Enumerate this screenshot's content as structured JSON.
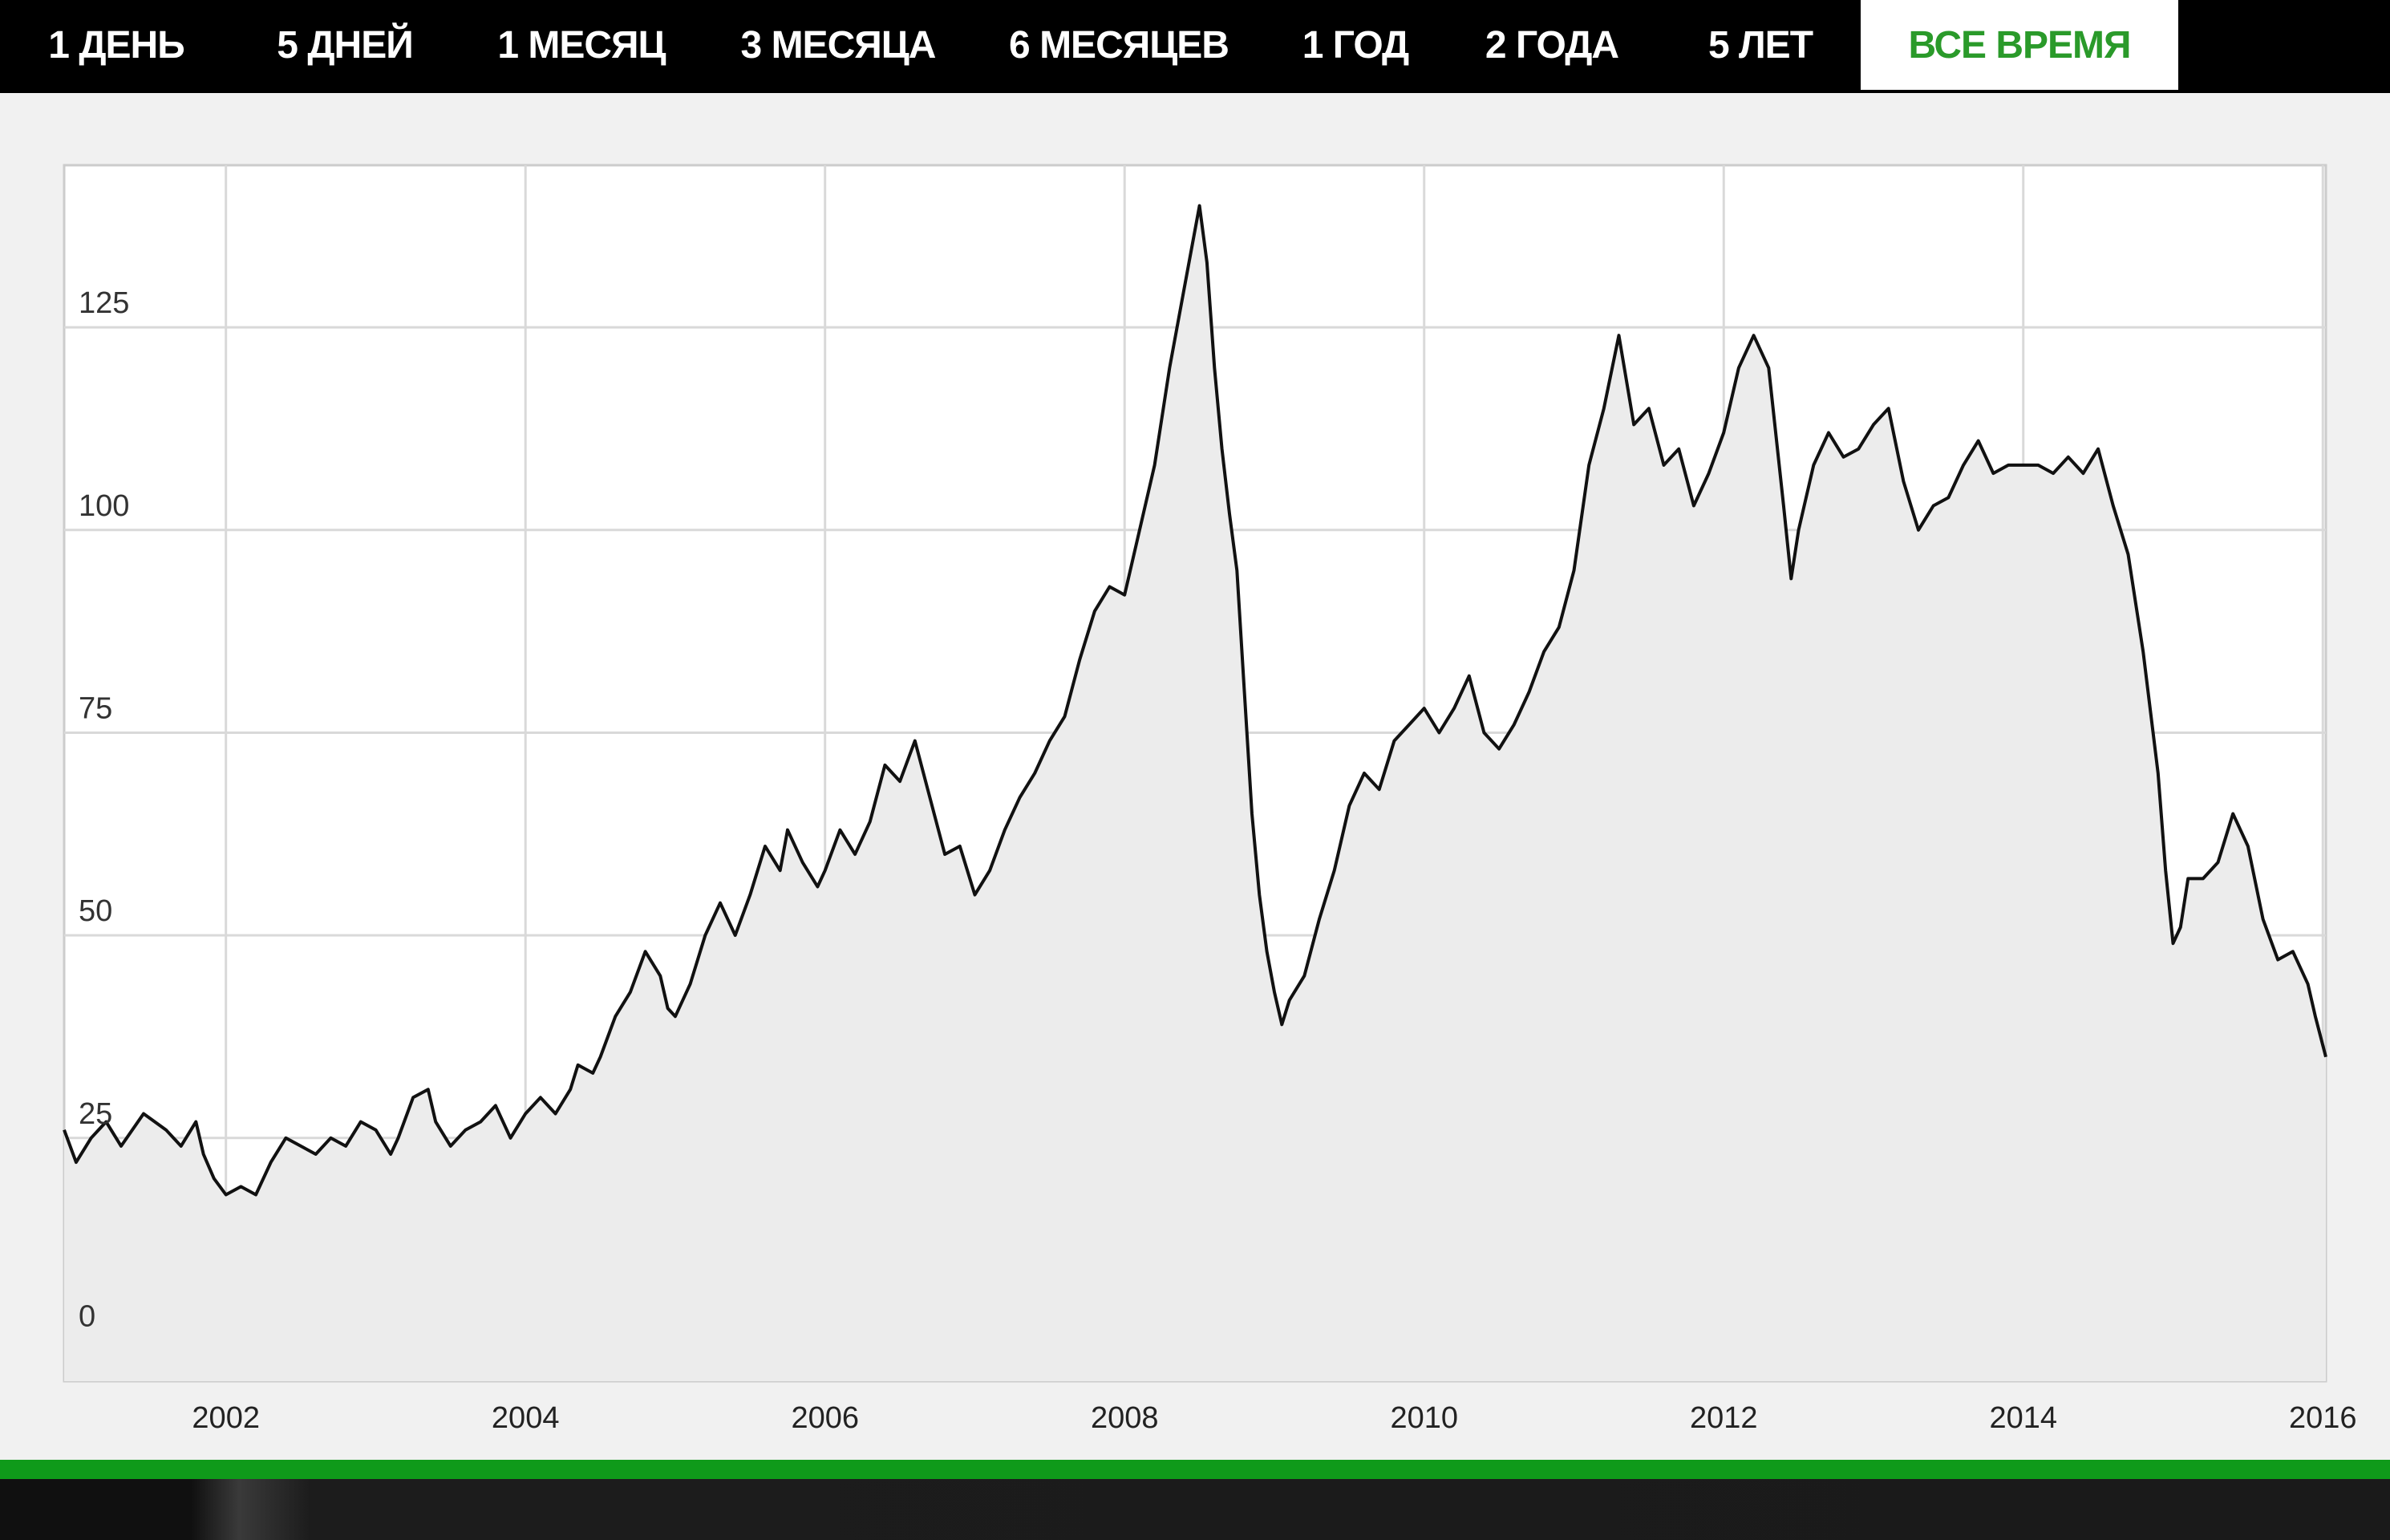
{
  "tabs": [
    {
      "label": "1 ДЕНЬ",
      "active": false
    },
    {
      "label": "5 ДНЕЙ",
      "active": false
    },
    {
      "label": "1 МЕСЯЦ",
      "active": false
    },
    {
      "label": "3 МЕСЯЦА",
      "active": false
    },
    {
      "label": "6 МЕСЯЦЕВ",
      "active": false
    },
    {
      "label": "1 ГОД",
      "active": false
    },
    {
      "label": "2 ГОДА",
      "active": false
    },
    {
      "label": "5 ЛЕТ",
      "active": false
    },
    {
      "label": "ВСЕ ВРЕМЯ",
      "active": true
    }
  ],
  "colors": {
    "active_tab_text": "#2a9a2a",
    "tab_bar": "#000000",
    "line": "#111111",
    "area_fill": "#ececec",
    "grid": "#d9d9d9",
    "accent_bar": "#0f9a1a"
  },
  "chart_data": {
    "type": "area",
    "x_unit": "year",
    "xlim": [
      2000.92,
      2016.02
    ],
    "ylim": [
      -5,
      145
    ],
    "y_ticks": [
      0,
      25,
      50,
      75,
      100,
      125
    ],
    "x_ticks": [
      2002,
      2004,
      2006,
      2008,
      2010,
      2012,
      2014,
      2016
    ],
    "grid": true,
    "legend": "none",
    "series": [
      {
        "points": [
          [
            2000.92,
            26
          ],
          [
            2001.0,
            22
          ],
          [
            2001.1,
            25
          ],
          [
            2001.2,
            27
          ],
          [
            2001.3,
            24
          ],
          [
            2001.45,
            28
          ],
          [
            2001.6,
            26
          ],
          [
            2001.7,
            24
          ],
          [
            2001.8,
            27
          ],
          [
            2001.85,
            23
          ],
          [
            2001.92,
            20
          ],
          [
            2002.0,
            18
          ],
          [
            2002.1,
            19
          ],
          [
            2002.2,
            18
          ],
          [
            2002.3,
            22
          ],
          [
            2002.4,
            25
          ],
          [
            2002.5,
            24
          ],
          [
            2002.6,
            23
          ],
          [
            2002.7,
            25
          ],
          [
            2002.8,
            24
          ],
          [
            2002.9,
            27
          ],
          [
            2003.0,
            26
          ],
          [
            2003.1,
            23
          ],
          [
            2003.15,
            25
          ],
          [
            2003.25,
            30
          ],
          [
            2003.35,
            31
          ],
          [
            2003.4,
            27
          ],
          [
            2003.5,
            24
          ],
          [
            2003.6,
            26
          ],
          [
            2003.7,
            27
          ],
          [
            2003.8,
            29
          ],
          [
            2003.9,
            25
          ],
          [
            2004.0,
            28
          ],
          [
            2004.1,
            30
          ],
          [
            2004.2,
            28
          ],
          [
            2004.3,
            31
          ],
          [
            2004.35,
            34
          ],
          [
            2004.45,
            33
          ],
          [
            2004.5,
            35
          ],
          [
            2004.6,
            40
          ],
          [
            2004.7,
            43
          ],
          [
            2004.8,
            48
          ],
          [
            2004.9,
            45
          ],
          [
            2004.95,
            41
          ],
          [
            2005.0,
            40
          ],
          [
            2005.1,
            44
          ],
          [
            2005.2,
            50
          ],
          [
            2005.3,
            54
          ],
          [
            2005.4,
            50
          ],
          [
            2005.5,
            55
          ],
          [
            2005.6,
            61
          ],
          [
            2005.7,
            58
          ],
          [
            2005.75,
            63
          ],
          [
            2005.85,
            59
          ],
          [
            2005.95,
            56
          ],
          [
            2006.0,
            58
          ],
          [
            2006.1,
            63
          ],
          [
            2006.2,
            60
          ],
          [
            2006.3,
            64
          ],
          [
            2006.4,
            71
          ],
          [
            2006.5,
            69
          ],
          [
            2006.6,
            74
          ],
          [
            2006.7,
            67
          ],
          [
            2006.8,
            60
          ],
          [
            2006.9,
            61
          ],
          [
            2007.0,
            55
          ],
          [
            2007.1,
            58
          ],
          [
            2007.2,
            63
          ],
          [
            2007.3,
            67
          ],
          [
            2007.4,
            70
          ],
          [
            2007.5,
            74
          ],
          [
            2007.6,
            77
          ],
          [
            2007.7,
            84
          ],
          [
            2007.8,
            90
          ],
          [
            2007.9,
            93
          ],
          [
            2008.0,
            92
          ],
          [
            2008.1,
            100
          ],
          [
            2008.2,
            108
          ],
          [
            2008.3,
            120
          ],
          [
            2008.4,
            130
          ],
          [
            2008.5,
            140
          ],
          [
            2008.55,
            133
          ],
          [
            2008.6,
            120
          ],
          [
            2008.65,
            110
          ],
          [
            2008.7,
            102
          ],
          [
            2008.75,
            95
          ],
          [
            2008.8,
            80
          ],
          [
            2008.85,
            65
          ],
          [
            2008.9,
            55
          ],
          [
            2008.95,
            48
          ],
          [
            2009.0,
            43
          ],
          [
            2009.05,
            39
          ],
          [
            2009.1,
            42
          ],
          [
            2009.2,
            45
          ],
          [
            2009.3,
            52
          ],
          [
            2009.4,
            58
          ],
          [
            2009.5,
            66
          ],
          [
            2009.6,
            70
          ],
          [
            2009.7,
            68
          ],
          [
            2009.8,
            74
          ],
          [
            2009.9,
            76
          ],
          [
            2010.0,
            78
          ],
          [
            2010.1,
            75
          ],
          [
            2010.2,
            78
          ],
          [
            2010.3,
            82
          ],
          [
            2010.4,
            75
          ],
          [
            2010.5,
            73
          ],
          [
            2010.6,
            76
          ],
          [
            2010.7,
            80
          ],
          [
            2010.8,
            85
          ],
          [
            2010.9,
            88
          ],
          [
            2011.0,
            95
          ],
          [
            2011.1,
            108
          ],
          [
            2011.2,
            115
          ],
          [
            2011.3,
            124
          ],
          [
            2011.4,
            113
          ],
          [
            2011.5,
            115
          ],
          [
            2011.6,
            108
          ],
          [
            2011.7,
            110
          ],
          [
            2011.8,
            103
          ],
          [
            2011.9,
            107
          ],
          [
            2012.0,
            112
          ],
          [
            2012.1,
            120
          ],
          [
            2012.2,
            124
          ],
          [
            2012.3,
            120
          ],
          [
            2012.4,
            103
          ],
          [
            2012.45,
            94
          ],
          [
            2012.5,
            100
          ],
          [
            2012.6,
            108
          ],
          [
            2012.7,
            112
          ],
          [
            2012.8,
            109
          ],
          [
            2012.9,
            110
          ],
          [
            2013.0,
            113
          ],
          [
            2013.1,
            115
          ],
          [
            2013.2,
            106
          ],
          [
            2013.3,
            100
          ],
          [
            2013.4,
            103
          ],
          [
            2013.5,
            104
          ],
          [
            2013.6,
            108
          ],
          [
            2013.7,
            111
          ],
          [
            2013.8,
            107
          ],
          [
            2013.9,
            108
          ],
          [
            2014.0,
            108
          ],
          [
            2014.1,
            108
          ],
          [
            2014.2,
            107
          ],
          [
            2014.3,
            109
          ],
          [
            2014.4,
            107
          ],
          [
            2014.5,
            110
          ],
          [
            2014.6,
            103
          ],
          [
            2014.7,
            97
          ],
          [
            2014.8,
            85
          ],
          [
            2014.9,
            70
          ],
          [
            2014.95,
            58
          ],
          [
            2015.0,
            49
          ],
          [
            2015.05,
            51
          ],
          [
            2015.1,
            57
          ],
          [
            2015.2,
            57
          ],
          [
            2015.3,
            59
          ],
          [
            2015.4,
            65
          ],
          [
            2015.5,
            61
          ],
          [
            2015.6,
            52
          ],
          [
            2015.7,
            47
          ],
          [
            2015.8,
            48
          ],
          [
            2015.9,
            44
          ],
          [
            2015.95,
            40
          ],
          [
            2016.02,
            35
          ]
        ]
      }
    ]
  }
}
